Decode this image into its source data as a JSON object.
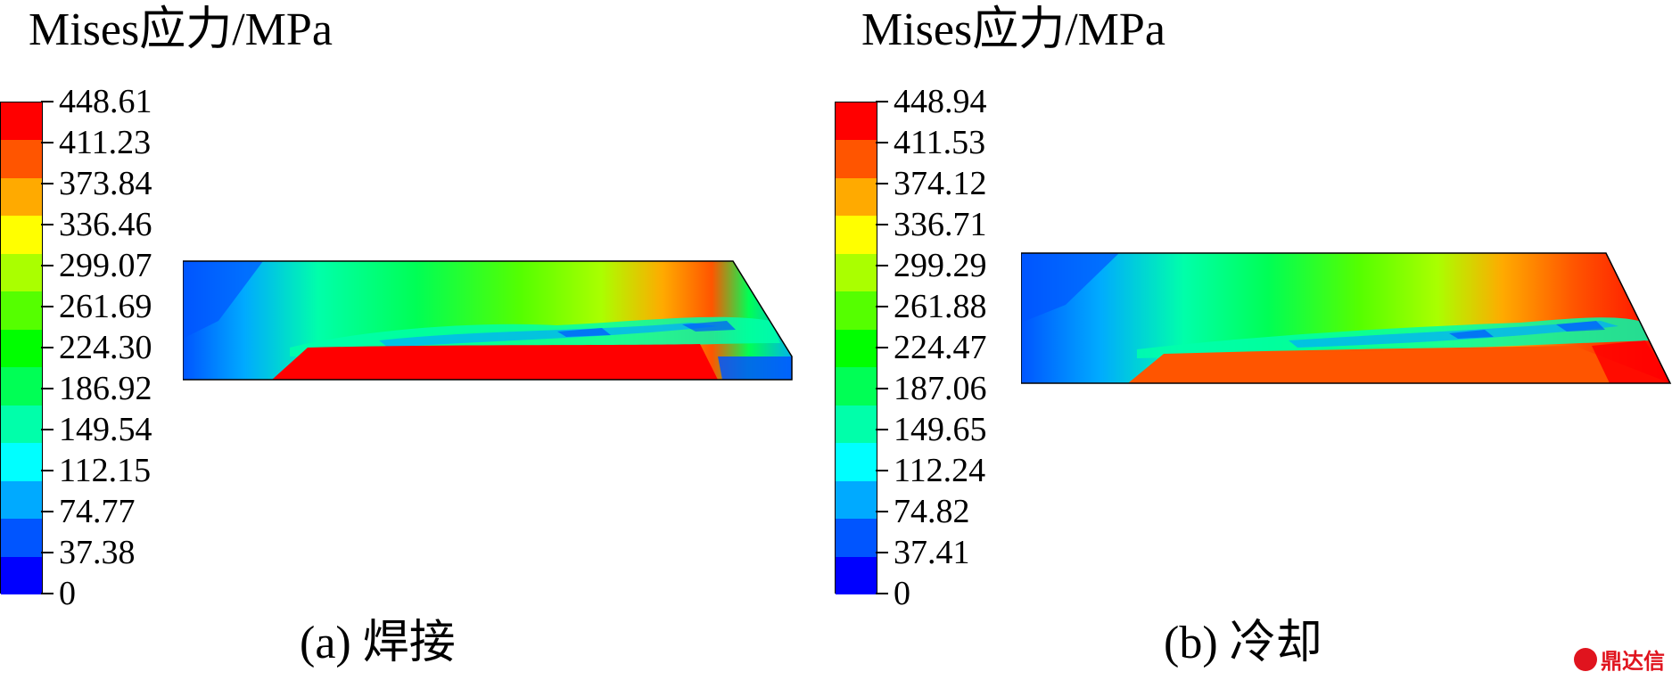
{
  "colors": {
    "scale": [
      "#ff0000",
      "#ff5500",
      "#ffaa00",
      "#ffff00",
      "#aaff00",
      "#55ff00",
      "#00ff00",
      "#00ff55",
      "#00ffaa",
      "#00ffff",
      "#00aaff",
      "#0055ff",
      "#0000ff"
    ],
    "edge": "#000000"
  },
  "panels": [
    {
      "id": "a",
      "title": "Mises应力/MPa",
      "legend_values": [
        "448.61",
        "411.23",
        "373.84",
        "336.46",
        "299.07",
        "261.69",
        "224.30",
        "186.92",
        "149.54",
        "112.15",
        "74.77",
        "37.38",
        "0"
      ],
      "caption": "(a) 焊接"
    },
    {
      "id": "b",
      "title": "Mises应力/MPa",
      "legend_values": [
        "448.94",
        "411.53",
        "374.12",
        "336.71",
        "299.29",
        "261.88",
        "224.47",
        "187.06",
        "149.65",
        "112.24",
        "74.82",
        "37.41",
        "0"
      ],
      "caption": "(b) 冷却"
    }
  ],
  "watermark": {
    "text": "鼎达信",
    "logo_icon": "dingdaxin-logo-icon"
  }
}
